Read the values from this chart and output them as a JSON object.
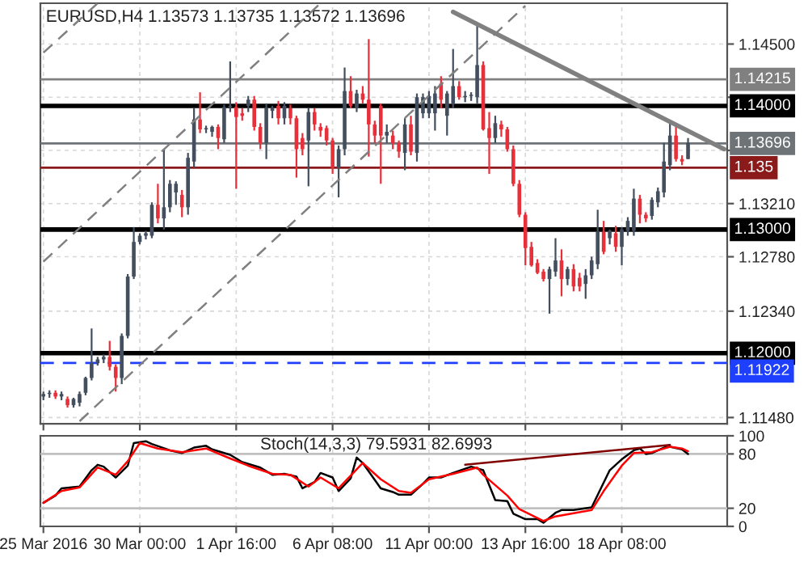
{
  "chart_data": [
    {
      "type": "candlestick",
      "title": "EURUSD,H4 1.13573 1.13735 1.13572 1.13696",
      "categories": [
        null,
        null,
        null,
        null,
        null,
        null,
        null,
        null,
        null,
        null,
        null,
        null,
        null,
        null,
        null,
        null,
        null,
        null,
        null,
        null,
        null,
        null,
        null,
        null,
        null,
        null,
        null,
        null,
        null,
        null,
        null,
        null,
        null,
        null,
        null,
        null,
        null,
        null,
        null,
        null,
        null,
        null,
        null,
        null,
        null,
        null,
        null,
        null,
        null,
        null,
        null,
        null,
        null,
        null,
        null,
        null,
        null,
        null,
        null,
        null,
        null,
        null,
        null,
        null,
        null,
        null,
        null,
        null,
        null,
        null,
        null,
        null,
        null,
        null,
        null,
        null,
        null,
        null,
        null,
        null,
        null,
        null,
        null,
        null,
        null,
        null,
        null,
        null,
        null,
        null,
        null,
        null,
        null,
        null,
        null,
        null,
        null,
        null,
        null,
        null,
        null,
        null,
        null,
        null,
        null,
        null,
        null,
        null,
        null,
        null,
        null,
        null,
        null,
        null
      ],
      "ohlc": [
        [
          1.1165,
          1.1169,
          1.1162,
          1.1167
        ],
        [
          1.1167,
          1.117,
          1.1164,
          1.1168
        ],
        [
          1.1168,
          1.117,
          1.1163,
          1.1165
        ],
        [
          1.1165,
          1.1169,
          1.1162,
          1.1167
        ],
        [
          1.1163,
          1.1165,
          1.1156,
          1.1158
        ],
        [
          1.1158,
          1.1164,
          1.1156,
          1.1163
        ],
        [
          1.116,
          1.1169,
          1.1157,
          1.1167
        ],
        [
          1.1168,
          1.1181,
          1.1166,
          1.118
        ],
        [
          1.118,
          1.122,
          1.1178,
          1.1192
        ],
        [
          1.1192,
          1.1197,
          1.119,
          1.1195
        ],
        [
          1.1195,
          1.1199,
          1.1192,
          1.1197
        ],
        [
          1.1197,
          1.121,
          1.1186,
          1.1189
        ],
        [
          1.1189,
          1.1191,
          1.1169,
          1.118
        ],
        [
          1.118,
          1.1216,
          1.1175,
          1.1214
        ],
        [
          1.1214,
          1.1264,
          1.1212,
          1.1262
        ],
        [
          1.1262,
          1.1302,
          1.126,
          1.129
        ],
        [
          1.129,
          1.1297,
          1.1288,
          1.1295
        ],
        [
          1.1295,
          1.1299,
          1.1292,
          1.1297
        ],
        [
          1.1295,
          1.1322,
          1.1293,
          1.132
        ],
        [
          1.132,
          1.1337,
          1.1305,
          1.1309
        ],
        [
          1.1309,
          1.1365,
          1.13,
          1.1318
        ],
        [
          1.1318,
          1.134,
          1.1314,
          1.1337
        ],
        [
          1.133,
          1.1339,
          1.132,
          1.1337
        ],
        [
          1.1328,
          1.1332,
          1.131,
          1.1318
        ],
        [
          1.1318,
          1.1362,
          1.1312,
          1.1358
        ],
        [
          1.1355,
          1.1398,
          1.135,
          1.1389
        ],
        [
          1.1389,
          1.1411,
          1.1378,
          1.1381
        ],
        [
          1.1381,
          1.1384,
          1.1378,
          1.1382
        ],
        [
          1.1379,
          1.1384,
          1.1375,
          1.1383
        ],
        [
          1.1383,
          1.1385,
          1.1365,
          1.1374
        ],
        [
          1.1373,
          1.1401,
          1.137,
          1.1399
        ],
        [
          1.1399,
          1.1436,
          1.1395,
          1.14
        ],
        [
          1.1399,
          1.1403,
          1.1333,
          1.1391
        ],
        [
          1.1394,
          1.1398,
          1.1388,
          1.1392
        ],
        [
          1.14,
          1.1408,
          1.1395,
          1.1405
        ],
        [
          1.1405,
          1.1408,
          1.138,
          1.1383
        ],
        [
          1.1383,
          1.1386,
          1.1365,
          1.137
        ],
        [
          1.137,
          1.1402,
          1.1357,
          1.1398
        ],
        [
          1.1396,
          1.14,
          1.139,
          1.1398
        ],
        [
          1.14,
          1.1404,
          1.1385,
          1.139
        ],
        [
          1.139,
          1.1403,
          1.1385,
          1.14
        ],
        [
          1.1398,
          1.1401,
          1.1385,
          1.139
        ],
        [
          1.139,
          1.1392,
          1.1342,
          1.1365
        ],
        [
          1.1374,
          1.1378,
          1.136,
          1.1365
        ],
        [
          1.1372,
          1.1398,
          1.1335,
          1.1395
        ],
        [
          1.1395,
          1.1398,
          1.138,
          1.1385
        ],
        [
          1.1383,
          1.1386,
          1.1375,
          1.138
        ],
        [
          1.1382,
          1.1384,
          1.1368,
          1.1372
        ],
        [
          1.1372,
          1.1374,
          1.1345,
          1.135
        ],
        [
          1.135,
          1.1368,
          1.1326,
          1.1365
        ],
        [
          1.1365,
          1.1431,
          1.136,
          1.1412
        ],
        [
          1.1412,
          1.1424,
          1.1398,
          1.14
        ],
        [
          1.1398,
          1.1413,
          1.1395,
          1.141
        ],
        [
          1.141,
          1.1416,
          1.1402,
          1.1405
        ],
        [
          1.1405,
          1.1454,
          1.1359,
          1.1385
        ],
        [
          1.1385,
          1.1388,
          1.137,
          1.1376
        ],
        [
          1.14,
          1.1402,
          1.1337,
          1.1376
        ],
        [
          1.1376,
          1.1385,
          1.137,
          1.1379
        ],
        [
          1.1376,
          1.138,
          1.1365,
          1.137
        ],
        [
          1.137,
          1.1372,
          1.1358,
          1.1363
        ],
        [
          1.1362,
          1.139,
          1.1348,
          1.1385
        ],
        [
          1.1385,
          1.1392,
          1.136,
          1.1363
        ],
        [
          1.1362,
          1.141,
          1.1355,
          1.1407
        ],
        [
          1.1394,
          1.141,
          1.139,
          1.1407
        ],
        [
          1.1394,
          1.1412,
          1.139,
          1.1408
        ],
        [
          1.1394,
          1.1416,
          1.138,
          1.141
        ],
        [
          1.1418,
          1.1424,
          1.1398,
          1.1405
        ],
        [
          1.1392,
          1.1412,
          1.1376,
          1.141
        ],
        [
          1.1402,
          1.1446,
          1.1398,
          1.1416
        ],
        [
          1.1416,
          1.142,
          1.1405,
          1.1407
        ],
        [
          1.1407,
          1.1412,
          1.1403,
          1.1408
        ],
        [
          1.1408,
          1.1411,
          1.1404,
          1.1409
        ],
        [
          1.1407,
          1.1466,
          1.1402,
          1.1433
        ],
        [
          1.1433,
          1.1436,
          1.138,
          1.1381
        ],
        [
          1.1382,
          1.1395,
          1.1345,
          1.1374
        ],
        [
          1.1374,
          1.1392,
          1.137,
          1.1386
        ],
        [
          1.1385,
          1.1388,
          1.1375,
          1.1381
        ],
        [
          1.1381,
          1.1383,
          1.1363,
          1.1365
        ],
        [
          1.1365,
          1.1368,
          1.1335,
          1.1337
        ],
        [
          1.1337,
          1.134,
          1.131,
          1.1312
        ],
        [
          1.1312,
          1.1314,
          1.1271,
          1.1285
        ],
        [
          1.1286,
          1.129,
          1.127,
          1.1271
        ],
        [
          1.1273,
          1.1276,
          1.1264,
          1.1265
        ],
        [
          1.1266,
          1.1268,
          1.1258,
          1.126
        ],
        [
          1.126,
          1.127,
          1.1232,
          1.1268
        ],
        [
          1.1266,
          1.1293,
          1.1262,
          1.1275
        ],
        [
          1.1275,
          1.1284,
          1.1246,
          1.126
        ],
        [
          1.126,
          1.127,
          1.1255,
          1.1268
        ],
        [
          1.1268,
          1.1272,
          1.125,
          1.1254
        ],
        [
          1.1261,
          1.1265,
          1.125,
          1.1254
        ],
        [
          1.1256,
          1.1268,
          1.1244,
          1.1263
        ],
        [
          1.1263,
          1.1278,
          1.126,
          1.1275
        ],
        [
          1.1272,
          1.1316,
          1.1268,
          1.1298
        ],
        [
          1.1298,
          1.1307,
          1.128,
          1.1282
        ],
        [
          1.1293,
          1.13,
          1.1288,
          1.1299
        ],
        [
          1.1297,
          1.1303,
          1.1282,
          1.1286
        ],
        [
          1.1286,
          1.1302,
          1.1271,
          1.13
        ],
        [
          1.1299,
          1.131,
          1.1295,
          1.1307
        ],
        [
          1.1299,
          1.1333,
          1.1295,
          1.1325
        ],
        [
          1.1325,
          1.1328,
          1.1305,
          1.1312
        ],
        [
          1.1312,
          1.1314,
          1.1306,
          1.1309
        ],
        [
          1.1311,
          1.1326,
          1.1308,
          1.1324
        ],
        [
          1.1322,
          1.1334,
          1.1318,
          1.1331
        ],
        [
          1.133,
          1.137,
          1.1326,
          1.1355
        ],
        [
          1.1352,
          1.1386,
          1.1348,
          1.1376
        ],
        [
          1.1376,
          1.1383,
          1.1355,
          1.1357
        ],
        [
          1.1357,
          1.136,
          1.1352,
          1.1355
        ],
        [
          1.1357,
          1.1374,
          1.1357,
          1.137
        ],
        null,
        null,
        null,
        null,
        null,
        null
      ],
      "colors": [
        "#434f5e",
        "#434f5e",
        "#e8303b",
        "#434f5e",
        "#e8303b",
        "#434f5e",
        "#434f5e",
        "#434f5e",
        "#434f5e",
        "#434f5e",
        "#434f5e",
        "#e8303b",
        "#e8303b",
        "#434f5e",
        "#434f5e",
        "#434f5e",
        "#434f5e",
        "#434f5e",
        "#434f5e",
        "#e8303b",
        "#434f5e",
        "#434f5e",
        "#434f5e",
        "#e8303b",
        "#434f5e",
        "#434f5e",
        "#e8303b",
        "#434f5e",
        "#434f5e",
        "#e8303b",
        "#434f5e",
        "#434f5e",
        "#e8303b",
        "#e8303b",
        "#434f5e",
        "#e8303b",
        "#e8303b",
        "#434f5e",
        "#434f5e",
        "#e8303b",
        "#434f5e",
        "#e8303b",
        "#e8303b",
        "#e8303b",
        "#434f5e",
        "#e8303b",
        "#e8303b",
        "#e8303b",
        "#e8303b",
        "#434f5e",
        "#434f5e",
        "#e8303b",
        "#434f5e",
        "#e8303b",
        "#e8303b",
        "#e8303b",
        "#e8303b",
        "#434f5e",
        "#e8303b",
        "#e8303b",
        "#434f5e",
        "#e8303b",
        "#434f5e",
        "#434f5e",
        "#434f5e",
        "#434f5e",
        "#e8303b",
        "#434f5e",
        "#434f5e",
        "#e8303b",
        "#434f5e",
        "#434f5e",
        "#434f5e",
        "#e8303b",
        "#e8303b",
        "#434f5e",
        "#e8303b",
        "#e8303b",
        "#e8303b",
        "#e8303b",
        "#e8303b",
        "#e8303b",
        "#e8303b",
        "#e8303b",
        "#434f5e",
        "#434f5e",
        "#e8303b",
        "#434f5e",
        "#e8303b",
        "#e8303b",
        "#434f5e",
        "#434f5e",
        "#434f5e",
        "#e8303b",
        "#434f5e",
        "#e8303b",
        "#434f5e",
        "#434f5e",
        "#434f5e",
        "#e8303b",
        "#e8303b",
        "#434f5e",
        "#434f5e",
        "#434f5e",
        "#434f5e",
        "#e8303b",
        "#e8303b",
        "#434f5e",
        null,
        null,
        null,
        null,
        null,
        null
      ],
      "series": [
        {
          "type": "line",
          "values": [
            null,
            null,
            null,
            null,
            null,
            null,
            null,
            null,
            null,
            null,
            null,
            null,
            null,
            null,
            null,
            null,
            null,
            null,
            null,
            null,
            null,
            null,
            null,
            null,
            null,
            null,
            null,
            null,
            null,
            null,
            null,
            null,
            null,
            null,
            null,
            null,
            null,
            null,
            null,
            null,
            null,
            null,
            null,
            null,
            null,
            null,
            null,
            null,
            null,
            null,
            null,
            null,
            null,
            null,
            null,
            null,
            null,
            null,
            null,
            null,
            null,
            null,
            null,
            null,
            null,
            null,
            null,
            null,
            1.1476,
            null,
            null,
            null,
            null,
            null,
            null,
            null,
            null,
            null,
            null,
            null,
            null,
            null,
            null,
            null,
            null,
            null,
            null,
            null,
            null,
            null,
            null,
            null,
            null,
            null,
            null,
            null,
            null,
            null,
            null,
            null,
            null,
            null,
            null,
            null,
            null,
            null,
            null,
            null,
            null,
            null,
            null,
            null,
            null,
            1.1365
          ],
          "color": "#808080",
          "line_style": "solid"
        },
        {
          "type": "line",
          "values": [
            1.1443,
            null,
            null,
            null,
            null,
            null,
            null,
            null,
            null,
            1.1483,
            null,
            null,
            null,
            null,
            null,
            null,
            null,
            null,
            null,
            null,
            null,
            null,
            null,
            null,
            null,
            null,
            null,
            null,
            null,
            null,
            null,
            null,
            null,
            null,
            null,
            null,
            null,
            null,
            null,
            null,
            null,
            null,
            null,
            null,
            null,
            null,
            null,
            null,
            null,
            null,
            null,
            null,
            null,
            null,
            null,
            null,
            null,
            null,
            null,
            null,
            null,
            null,
            null,
            null,
            null,
            null,
            null,
            null,
            null,
            null,
            null,
            null,
            null,
            null,
            null,
            null,
            null,
            null,
            null,
            null,
            null,
            null,
            null,
            null,
            null,
            null,
            null,
            null,
            null,
            null,
            null,
            null,
            null,
            null,
            null,
            null,
            null,
            null,
            null,
            null,
            null,
            null,
            null,
            null,
            null,
            null,
            null,
            null,
            null,
            null,
            null,
            null,
            null,
            null
          ],
          "color": "#808080",
          "line_style": "dashed"
        },
        {
          "type": "line",
          "values": [
            1.1274,
            null,
            null,
            null,
            null,
            null,
            null,
            null,
            null,
            null,
            null,
            null,
            null,
            null,
            null,
            null,
            null,
            null,
            null,
            null,
            null,
            null,
            null,
            null,
            null,
            null,
            null,
            null,
            null,
            null,
            null,
            null,
            null,
            null,
            null,
            null,
            null,
            null,
            null,
            null,
            null,
            null,
            null,
            null,
            null,
            null,
            1.1483,
            null,
            null,
            null,
            null,
            null,
            null,
            null,
            null,
            null,
            null,
            null,
            null,
            null,
            null,
            null,
            null,
            null,
            null,
            null,
            null,
            null,
            null,
            null,
            null,
            null,
            null,
            null,
            null,
            null,
            null,
            null,
            null,
            null,
            null,
            null,
            null,
            null,
            null,
            null,
            null,
            null,
            null,
            null,
            null,
            null,
            null,
            null,
            null,
            null,
            null,
            null,
            null,
            null,
            null,
            null,
            null,
            null,
            null,
            null,
            null,
            null,
            null,
            null,
            null,
            null,
            null,
            null
          ],
          "color": "#808080",
          "line_style": "dashed"
        },
        {
          "type": "line",
          "values": [
            null,
            null,
            null,
            null,
            null,
            null,
            1.1145,
            null,
            null,
            null,
            null,
            null,
            null,
            null,
            null,
            null,
            null,
            null,
            null,
            null,
            null,
            null,
            null,
            null,
            null,
            null,
            null,
            null,
            null,
            null,
            null,
            null,
            null,
            null,
            null,
            null,
            null,
            null,
            null,
            null,
            null,
            null,
            null,
            null,
            null,
            null,
            null,
            null,
            null,
            null,
            null,
            null,
            null,
            null,
            null,
            null,
            null,
            null,
            null,
            null,
            null,
            null,
            null,
            null,
            null,
            null,
            null,
            null,
            null,
            null,
            null,
            null,
            null,
            null,
            null,
            null,
            null,
            null,
            null,
            null,
            1.1481,
            null,
            null,
            null,
            null,
            null,
            null,
            null,
            null,
            null,
            null,
            null,
            null,
            null,
            null,
            null,
            null,
            null,
            null,
            null,
            null,
            null,
            null,
            null,
            null,
            null,
            null,
            null,
            null,
            null,
            null,
            null,
            null,
            null
          ],
          "color": "#808080",
          "line_style": "dashed"
        }
      ],
      "ylim": [
        1.1143,
        1.1483
      ],
      "yticks": [
        {
          "value": 1.145,
          "label": "1.14500"
        },
        {
          "value": 1.1407,
          "label": null
        },
        {
          "value": 1.1364,
          "label": null
        },
        {
          "value": 1.1321,
          "label": "1.13210"
        },
        {
          "value": 1.1278,
          "label": "1.12780"
        },
        {
          "value": 1.1234,
          "label": "1.12340"
        },
        {
          "value": 1.1148,
          "label": "1.11480"
        }
      ],
      "tick_labels": "y",
      "grid": true,
      "ref_lines": [
        {
          "axis": "y",
          "value": 1.14215,
          "label": "1.14215",
          "color": "#808080"
        },
        {
          "axis": "y",
          "value": 1.14,
          "label": "1.14000",
          "color": "#000000"
        },
        {
          "axis": "y",
          "value": 1.13696,
          "label": "1.13696",
          "color": "#6e7378"
        },
        {
          "axis": "y",
          "value": 1.135,
          "label": "1.135",
          "color": "#8b1a1a"
        },
        {
          "axis": "y",
          "value": 1.13,
          "label": "1.13000",
          "color": "#000000"
        },
        {
          "axis": "y",
          "value": 1.12,
          "label": "1.12000",
          "color": "#000000"
        },
        {
          "axis": "y",
          "value": 1.11922,
          "label": "1.11922",
          "color": "#1f3fff",
          "line_style": "dashed"
        }
      ]
    },
    {
      "type": "line",
      "title": "Stoch(14,3,3) 79.5931 82.6993",
      "categories": [
        "25 Mar 2016",
        null,
        null,
        null,
        null,
        null,
        null,
        null,
        null,
        null,
        null,
        null,
        null,
        null,
        null,
        null,
        "30 Mar 00:00",
        null,
        null,
        null,
        null,
        null,
        null,
        null,
        null,
        null,
        null,
        null,
        null,
        null,
        null,
        null,
        "1 Apr 16:00",
        null,
        null,
        null,
        null,
        null,
        null,
        null,
        null,
        null,
        null,
        null,
        null,
        null,
        null,
        null,
        "6 Apr 08:00",
        null,
        null,
        null,
        null,
        null,
        null,
        null,
        null,
        null,
        null,
        null,
        null,
        null,
        null,
        null,
        "11 Apr 00:00",
        null,
        null,
        null,
        null,
        null,
        null,
        null,
        null,
        null,
        null,
        null,
        null,
        null,
        null,
        null,
        "13 Apr 16:00",
        null,
        null,
        null,
        null,
        null,
        null,
        null,
        null,
        null,
        null,
        null,
        null,
        null,
        null,
        null,
        "18 Apr 08:00",
        null,
        null,
        null,
        null,
        null,
        null,
        null,
        null,
        null,
        null,
        null,
        null,
        null,
        null,
        null,
        null,
        null
      ],
      "series": [
        {
          "values": [
            26,
            null,
            34,
            42,
            null,
            null,
            44,
            null,
            62,
            68,
            66,
            null,
            54,
            null,
            67,
            92,
            null,
            94,
            91,
            null,
            null,
            84,
            null,
            81,
            null,
            87,
            null,
            89,
            85,
            null,
            null,
            79,
            null,
            71,
            69,
            null,
            65,
            null,
            57,
            null,
            58,
            null,
            55,
            42,
            null,
            49,
            59,
            null,
            54,
            39,
            null,
            53,
            76,
            70,
            null,
            null,
            42,
            null,
            38,
            35,
            null,
            35,
            null,
            47,
            54,
            null,
            54,
            null,
            59,
            null,
            null,
            66,
            null,
            62,
            null,
            29,
            null,
            28,
            14,
            null,
            8,
            null,
            8,
            4,
            null,
            15,
            18,
            null,
            18,
            null,
            null,
            21,
            null,
            null,
            62,
            null,
            74,
            null,
            84,
            86,
            80,
            81,
            null,
            87,
            88,
            null,
            85,
            80,
            null,
            null,
            null,
            null,
            null,
            null
          ],
          "color": "#000000"
        },
        {
          "values": [
            26,
            null,
            null,
            39,
            null,
            null,
            43,
            null,
            null,
            65,
            null,
            null,
            57,
            null,
            72,
            null,
            92,
            null,
            null,
            86,
            null,
            null,
            null,
            82,
            null,
            null,
            null,
            86,
            null,
            null,
            null,
            75,
            null,
            null,
            67,
            null,
            null,
            null,
            58,
            null,
            null,
            57,
            null,
            null,
            44,
            null,
            54,
            null,
            null,
            42,
            null,
            null,
            null,
            70,
            null,
            null,
            52,
            null,
            null,
            39,
            null,
            37,
            null,
            null,
            52,
            null,
            null,
            null,
            58,
            null,
            null,
            null,
            65,
            57,
            null,
            null,
            null,
            34,
            null,
            19,
            null,
            null,
            null,
            6,
            null,
            11,
            null,
            null,
            null,
            null,
            null,
            18,
            null,
            39,
            null,
            null,
            67,
            null,
            81,
            null,
            null,
            82,
            null,
            null,
            88,
            null,
            86,
            83,
            null,
            null,
            null,
            null,
            null,
            null
          ],
          "color": "#ff0000"
        },
        {
          "values": [
            null,
            null,
            null,
            null,
            null,
            null,
            null,
            null,
            null,
            null,
            null,
            null,
            null,
            null,
            null,
            null,
            null,
            null,
            null,
            null,
            null,
            null,
            null,
            null,
            null,
            null,
            null,
            null,
            null,
            null,
            null,
            null,
            null,
            null,
            null,
            null,
            null,
            null,
            null,
            null,
            null,
            null,
            null,
            null,
            null,
            null,
            null,
            null,
            null,
            null,
            null,
            null,
            null,
            null,
            null,
            null,
            null,
            null,
            null,
            null,
            null,
            null,
            null,
            null,
            null,
            null,
            null,
            null,
            null,
            null,
            68,
            null,
            null,
            null,
            null,
            null,
            null,
            null,
            null,
            null,
            null,
            null,
            null,
            null,
            null,
            null,
            null,
            null,
            null,
            null,
            null,
            null,
            null,
            null,
            null,
            null,
            null,
            null,
            null,
            null,
            null,
            null,
            null,
            null,
            90,
            null,
            null,
            null,
            null,
            null,
            null,
            null,
            null,
            null
          ],
          "color": "#800000"
        }
      ],
      "ylim": [
        0,
        100
      ],
      "yticks": [
        0,
        20,
        80,
        100
      ],
      "grid": "x",
      "ref_lines": [
        {
          "axis": "y",
          "value": 80,
          "color": "#c0c0c0"
        },
        {
          "axis": "y",
          "value": 20,
          "color": "#c0c0c0"
        }
      ]
    }
  ]
}
